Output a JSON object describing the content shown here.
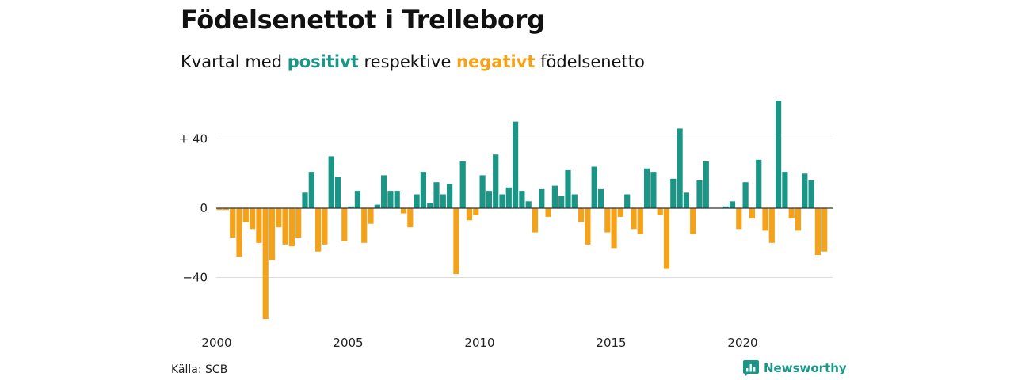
{
  "title": "Födelsenettot i Trelleborg",
  "subtitle": {
    "prefix": "Kvartal med ",
    "positive_word": "positivt",
    "middle": " respektive ",
    "negative_word": "negativt",
    "suffix": " födelsenetto"
  },
  "source": "Källa: SCB",
  "brand": {
    "name": "Newsworthy",
    "icon": "bar-chart-logo-icon"
  },
  "colors": {
    "positive": "#1b9686",
    "negative": "#f5a21b",
    "grid": "#dddddd",
    "text": "#222222"
  },
  "chart_data": {
    "type": "bar",
    "x_start": "2000 Q1",
    "x_step": "quarter",
    "values": [
      -1,
      -1,
      -17,
      -28,
      -8,
      -12,
      -20,
      -64,
      -30,
      -11,
      -21,
      -22,
      -17,
      9,
      21,
      -25,
      -21,
      30,
      18,
      -19,
      1,
      10,
      -20,
      -9,
      2,
      19,
      10,
      10,
      -3,
      -11,
      8,
      21,
      3,
      15,
      8,
      14,
      -38,
      27,
      -7,
      -4,
      19,
      10,
      31,
      8,
      12,
      50,
      10,
      4,
      -14,
      11,
      -5,
      13,
      7,
      22,
      8,
      -8,
      -21,
      24,
      11,
      -14,
      -23,
      -5,
      8,
      -12,
      -15,
      23,
      21,
      -4,
      -35,
      17,
      46,
      9,
      -15,
      16,
      27,
      0,
      0,
      1,
      4,
      -12,
      15,
      -6,
      28,
      -13,
      -20,
      62,
      21,
      -6,
      -13,
      20,
      16,
      -27,
      -25
    ],
    "ylim": [
      -64,
      62
    ],
    "yticks": [
      {
        "value": 40,
        "label": "+ 40"
      },
      {
        "value": 0,
        "label": "0"
      },
      {
        "value": -40,
        "label": "−40"
      }
    ],
    "xticks": [
      "2000",
      "2005",
      "2010",
      "2015",
      "2020"
    ],
    "grid": true,
    "legend": "in subtitle"
  }
}
